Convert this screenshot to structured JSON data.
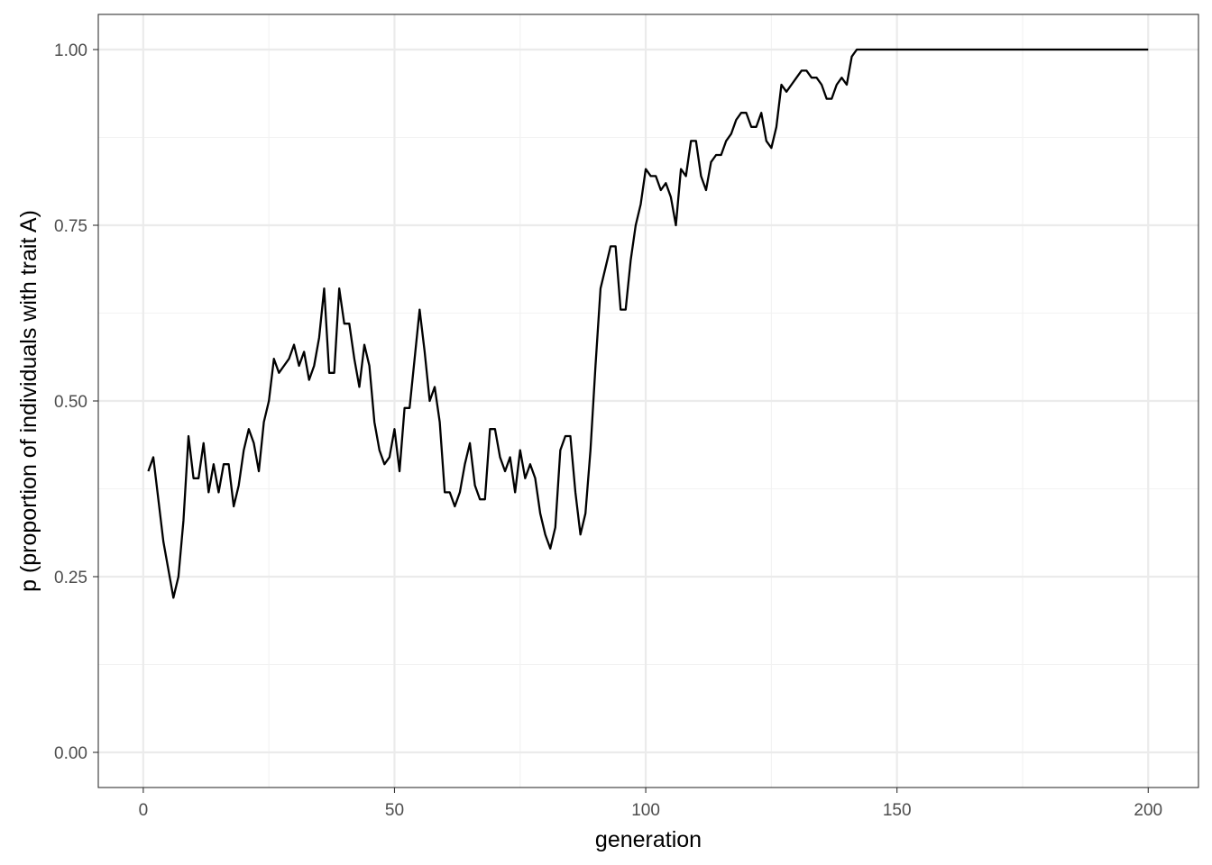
{
  "chart_data": {
    "type": "line",
    "title": "",
    "xlabel": "generation",
    "ylabel": "p (proportion of individuals with trait A)",
    "xlim": [
      -8.95,
      210
    ],
    "ylim": [
      -0.05,
      1.05
    ],
    "x_ticks": [
      0,
      50,
      100,
      150,
      200
    ],
    "x_tick_labels": [
      "0",
      "50",
      "100",
      "150",
      "200"
    ],
    "y_ticks": [
      0,
      0.25,
      0.5,
      0.75,
      1
    ],
    "y_tick_labels": [
      "0.00",
      "0.25",
      "0.50",
      "0.75",
      "1.00"
    ],
    "grid": true,
    "legend": "none",
    "colors": {
      "line": "#000000",
      "grid_major": "#ebebeb",
      "grid_minor": "#f2f2f2",
      "panel_border": "#333333"
    },
    "series": [
      {
        "x_start": 1,
        "x_step": 1,
        "values": [
          0.4,
          0.42,
          0.36,
          0.3,
          0.26,
          0.22,
          0.25,
          0.33,
          0.45,
          0.39,
          0.39,
          0.44,
          0.37,
          0.41,
          0.37,
          0.41,
          0.41,
          0.35,
          0.38,
          0.43,
          0.46,
          0.44,
          0.4,
          0.47,
          0.5,
          0.56,
          0.54,
          0.55,
          0.56,
          0.58,
          0.55,
          0.57,
          0.53,
          0.55,
          0.59,
          0.66,
          0.54,
          0.54,
          0.66,
          0.61,
          0.61,
          0.56,
          0.52,
          0.58,
          0.55,
          0.47,
          0.43,
          0.41,
          0.42,
          0.46,
          0.4,
          0.49,
          0.49,
          0.56,
          0.63,
          0.57,
          0.5,
          0.52,
          0.47,
          0.37,
          0.37,
          0.35,
          0.37,
          0.41,
          0.44,
          0.38,
          0.36,
          0.36,
          0.46,
          0.46,
          0.42,
          0.4,
          0.42,
          0.37,
          0.43,
          0.39,
          0.41,
          0.39,
          0.34,
          0.31,
          0.29,
          0.32,
          0.43,
          0.45,
          0.45,
          0.37,
          0.31,
          0.34,
          0.43,
          0.55,
          0.66,
          0.69,
          0.72,
          0.72,
          0.63,
          0.63,
          0.7,
          0.75,
          0.78,
          0.83,
          0.82,
          0.82,
          0.8,
          0.81,
          0.79,
          0.75,
          0.83,
          0.82,
          0.87,
          0.87,
          0.82,
          0.8,
          0.84,
          0.85,
          0.85,
          0.87,
          0.88,
          0.9,
          0.91,
          0.91,
          0.89,
          0.89,
          0.91,
          0.87,
          0.86,
          0.89,
          0.95,
          0.94,
          0.95,
          0.96,
          0.97,
          0.97,
          0.96,
          0.96,
          0.95,
          0.93,
          0.93,
          0.95,
          0.96,
          0.95,
          0.99,
          1.0,
          1.0,
          1.0,
          1.0,
          1.0,
          1.0,
          1.0,
          1.0,
          1.0,
          1.0,
          1.0,
          1.0,
          1.0,
          1.0,
          1.0,
          1.0,
          1.0,
          1.0,
          1.0,
          1.0,
          1.0,
          1.0,
          1.0,
          1.0,
          1.0,
          1.0,
          1.0,
          1.0,
          1.0,
          1.0,
          1.0,
          1.0,
          1.0,
          1.0,
          1.0,
          1.0,
          1.0,
          1.0,
          1.0,
          1.0,
          1.0,
          1.0,
          1.0,
          1.0,
          1.0,
          1.0,
          1.0,
          1.0,
          1.0,
          1.0,
          1.0,
          1.0,
          1.0,
          1.0,
          1.0,
          1.0,
          1.0,
          1.0,
          1.0
        ]
      }
    ]
  }
}
